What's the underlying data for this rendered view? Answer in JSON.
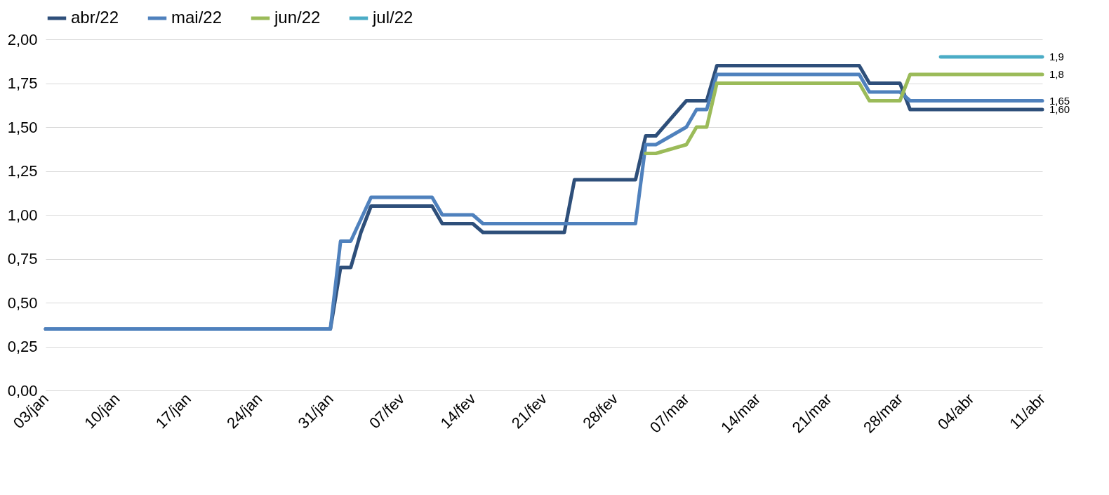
{
  "chart_data": {
    "type": "line",
    "xlim": [
      "--01-03",
      "--04-11"
    ],
    "xticks": [
      {
        "value": "--01-03",
        "label": "03/jan"
      },
      {
        "value": "--01-10",
        "label": "10/jan"
      },
      {
        "value": "--01-17",
        "label": "17/jan"
      },
      {
        "value": "--01-24",
        "label": "24/jan"
      },
      {
        "value": "--01-31",
        "label": "31/jan"
      },
      {
        "value": "--02-07",
        "label": "07/fev"
      },
      {
        "value": "--02-14",
        "label": "14/fev"
      },
      {
        "value": "--02-21",
        "label": "21/fev"
      },
      {
        "value": "--02-28",
        "label": "28/fev"
      },
      {
        "value": "--03-07",
        "label": "07/mar"
      },
      {
        "value": "--03-14",
        "label": "14/mar"
      },
      {
        "value": "--03-21",
        "label": "21/mar"
      },
      {
        "value": "--03-28",
        "label": "28/mar"
      },
      {
        "value": "--04-04",
        "label": "04/abr"
      },
      {
        "value": "--04-11",
        "label": "11/abr"
      }
    ],
    "ylim": [
      0,
      2
    ],
    "yticks": [
      {
        "value": 0,
        "label": "0,00"
      },
      {
        "value": 0.25,
        "label": "0,25"
      },
      {
        "value": 0.5,
        "label": "0,50"
      },
      {
        "value": 0.75,
        "label": "0,75"
      },
      {
        "value": 1,
        "label": "1,00"
      },
      {
        "value": 1.25,
        "label": "1,25"
      },
      {
        "value": 1.5,
        "label": "1,50"
      },
      {
        "value": 1.75,
        "label": "1,75"
      },
      {
        "value": 2,
        "label": "2,00"
      }
    ],
    "grid": "y",
    "legend": "top",
    "line_style": "solid",
    "marker": "none",
    "series": [
      {
        "name": "abr/22",
        "color": "#2e4f7a",
        "x": [
          "--01-03",
          "--01-31",
          "--02-01",
          "--02-02",
          "--02-03",
          "--02-04",
          "--02-10",
          "--02-11",
          "--02-14",
          "--02-15",
          "--02-23",
          "--02-24",
          "--03-02",
          "--03-03",
          "--03-04",
          "--03-07",
          "--03-09",
          "--03-10",
          "--03-24",
          "--03-25",
          "--03-28",
          "--03-29",
          "--04-11"
        ],
        "values": [
          0.35,
          0.35,
          0.7,
          0.7,
          0.9,
          1.05,
          1.05,
          0.95,
          0.95,
          0.9,
          0.9,
          1.2,
          1.2,
          1.45,
          1.45,
          1.65,
          1.65,
          1.85,
          1.85,
          1.75,
          1.75,
          1.6,
          1.6
        ],
        "value_labels": [
          null,
          null,
          null,
          null,
          null,
          null,
          null,
          null,
          null,
          null,
          null,
          null,
          null,
          null,
          null,
          null,
          null,
          null,
          null,
          null,
          null,
          null,
          "1,60"
        ]
      },
      {
        "name": "mai/22",
        "color": "#4f81bd",
        "x": [
          "--01-03",
          "--01-31",
          "--02-01",
          "--02-02",
          "--02-04",
          "--02-10",
          "--02-11",
          "--02-14",
          "--02-15",
          "--03-02",
          "--03-03",
          "--03-04",
          "--03-07",
          "--03-08",
          "--03-09",
          "--03-10",
          "--03-24",
          "--03-25",
          "--03-28",
          "--03-29",
          "--04-11"
        ],
        "values": [
          0.35,
          0.35,
          0.85,
          0.85,
          1.1,
          1.1,
          1.0,
          1.0,
          0.95,
          0.95,
          1.4,
          1.4,
          1.5,
          1.6,
          1.6,
          1.8,
          1.8,
          1.7,
          1.7,
          1.65,
          1.65
        ],
        "value_labels": [
          null,
          null,
          null,
          null,
          null,
          null,
          null,
          null,
          null,
          null,
          null,
          null,
          null,
          null,
          null,
          null,
          null,
          null,
          null,
          null,
          "1,65"
        ]
      },
      {
        "name": "jun/22",
        "color": "#9bbb59",
        "x": [
          "--03-03",
          "--03-04",
          "--03-07",
          "--03-08",
          "--03-09",
          "--03-10",
          "--03-24",
          "--03-25",
          "--03-28",
          "--03-29",
          "--04-11"
        ],
        "values": [
          1.35,
          1.35,
          1.4,
          1.5,
          1.5,
          1.75,
          1.75,
          1.65,
          1.65,
          1.8,
          1.8
        ],
        "value_labels": [
          null,
          null,
          null,
          null,
          null,
          null,
          null,
          null,
          null,
          null,
          "1,8"
        ]
      },
      {
        "name": "jul/22",
        "color": "#4bacc6",
        "x": [
          "--04-01",
          "--04-11"
        ],
        "values": [
          1.9,
          1.9
        ],
        "value_labels": [
          null,
          "1,9"
        ]
      }
    ]
  }
}
